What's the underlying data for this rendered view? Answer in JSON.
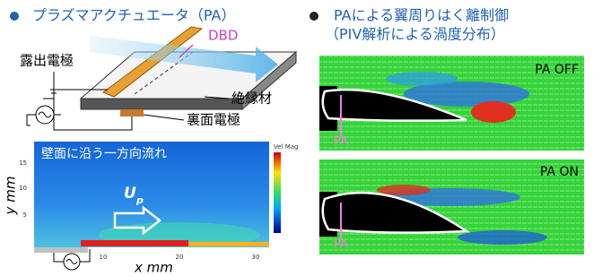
{
  "left": {
    "heading": "プラズマアクチュエータ（PA）",
    "dbd": "DBD",
    "exposed": "露出電極",
    "insulator": "絶縁材",
    "back": "裏面電極",
    "plot": {
      "caption": "壁面に沿う一方向流れ",
      "velocity": "U",
      "velocity_sub": "p",
      "ylabel": "y mm",
      "xlabel": "x mm",
      "colorbar": "Vel Mag",
      "yticks": [
        "15",
        "10",
        "5"
      ],
      "xticks": [
        "10",
        "20",
        "30"
      ]
    }
  },
  "right": {
    "heading": "PAによる翼周りはく離制御",
    "subheading": "（PIV解析による渦度分布）",
    "off": {
      "label": "PA OFF",
      "pa": "PA"
    },
    "on": {
      "label": "PA ON",
      "pa": "PA"
    }
  }
}
